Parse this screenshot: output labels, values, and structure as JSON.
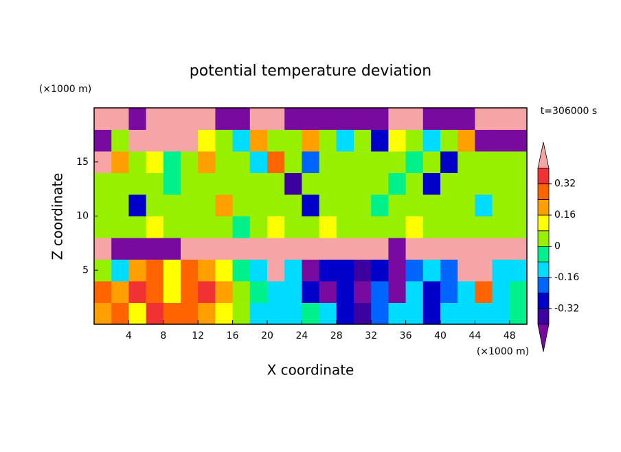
{
  "chart_data": {
    "type": "heatmap",
    "title": "potential temperature deviation",
    "y_unit_label": "(×1000 m)",
    "x_unit_label": "(×1000 m)",
    "time_label": "t=306000 s",
    "xlabel": "X coordinate",
    "ylabel": "Z coordinate",
    "xlim": [
      0,
      50
    ],
    "ylim": [
      0,
      20
    ],
    "xticks": [
      4,
      8,
      12,
      16,
      20,
      24,
      28,
      32,
      36,
      40,
      44,
      48
    ],
    "yticks": [
      5,
      10,
      15
    ],
    "x": [
      1,
      3,
      5,
      7,
      9,
      11,
      13,
      15,
      17,
      19,
      21,
      23,
      25,
      27,
      29,
      31,
      33,
      35,
      37,
      39,
      41,
      43,
      45,
      47,
      49
    ],
    "y": [
      1,
      3,
      5,
      7,
      9,
      11,
      13,
      15,
      17,
      19
    ],
    "z": [
      [
        0.2,
        0.3,
        0.1,
        0.35,
        0.25,
        0.3,
        0.2,
        0.1,
        0.05,
        -0.1,
        -0.12,
        -0.1,
        -0.05,
        -0.15,
        -0.3,
        -0.38,
        -0.2,
        -0.12,
        -0.1,
        -0.3,
        -0.15,
        -0.1,
        -0.12,
        -0.1,
        -0.05
      ],
      [
        0.3,
        0.2,
        0.35,
        0.25,
        0.1,
        0.3,
        0.35,
        0.2,
        0.05,
        -0.05,
        -0.12,
        -0.15,
        -0.3,
        -0.42,
        -0.3,
        -0.42,
        -0.2,
        -0.45,
        -0.15,
        -0.3,
        -0.2,
        -0.1,
        0.3,
        -0.12,
        -0.08
      ],
      [
        0.05,
        -0.1,
        0.2,
        0.3,
        0.1,
        0.25,
        0.2,
        0.1,
        -0.05,
        -0.1,
        0.45,
        -0.15,
        -0.45,
        -0.25,
        -0.3,
        -0.35,
        -0.3,
        -0.45,
        -0.2,
        -0.15,
        -0.2,
        0.45,
        0.45,
        -0.1,
        -0.15
      ],
      [
        0.45,
        -0.45,
        -0.45,
        -0.45,
        -0.45,
        0.45,
        0.45,
        0.45,
        0.45,
        0.45,
        0.45,
        0.45,
        0.45,
        0.45,
        0.45,
        0.45,
        0.45,
        -0.45,
        0.45,
        0.45,
        0.45,
        0.45,
        0.45,
        0.45,
        0.45
      ],
      [
        0.05,
        0.0,
        0.05,
        0.1,
        0.05,
        0.05,
        0.0,
        0.05,
        -0.05,
        0.05,
        0.1,
        0.05,
        0.05,
        0.08,
        0.05,
        0.0,
        0.05,
        0.05,
        0.1,
        0.05,
        0.05,
        0.0,
        0.05,
        0.05,
        0.05
      ],
      [
        0.04,
        0.04,
        -0.3,
        0.04,
        0.04,
        0.04,
        0.04,
        0.2,
        0.04,
        0.04,
        0.04,
        0.04,
        -0.3,
        0.04,
        0.04,
        0.04,
        -0.04,
        0.04,
        0.04,
        0.04,
        0.04,
        0.04,
        -0.12,
        0.04,
        0.04
      ],
      [
        0.04,
        0.04,
        0.04,
        0.04,
        -0.04,
        0.04,
        0.04,
        0.04,
        0.04,
        0.04,
        0.04,
        -0.35,
        0.04,
        0.04,
        0.04,
        0.04,
        0.04,
        -0.04,
        0.04,
        -0.3,
        0.04,
        0.04,
        0.04,
        0.04,
        0.04
      ],
      [
        0.45,
        0.2,
        0.04,
        0.1,
        -0.04,
        0.04,
        0.2,
        0.04,
        0.04,
        -0.12,
        0.25,
        0.04,
        -0.2,
        0.04,
        0.04,
        0.04,
        0.04,
        0.04,
        -0.04,
        0.04,
        -0.3,
        0.04,
        0.04,
        0.04,
        0.04
      ],
      [
        -0.45,
        0.04,
        0.45,
        0.45,
        0.45,
        0.45,
        0.1,
        0.04,
        -0.12,
        0.2,
        0.04,
        0.04,
        0.2,
        0.04,
        -0.1,
        0.04,
        -0.3,
        0.1,
        0.04,
        -0.1,
        0.04,
        0.2,
        -0.45,
        -0.45,
        -0.45
      ],
      [
        0.45,
        0.45,
        -0.45,
        0.45,
        0.45,
        0.45,
        0.45,
        -0.45,
        -0.45,
        0.45,
        0.45,
        -0.45,
        -0.45,
        -0.45,
        -0.45,
        -0.45,
        -0.45,
        0.45,
        0.45,
        -0.45,
        -0.45,
        -0.45,
        0.45,
        0.45,
        0.45
      ]
    ],
    "levels": [
      -0.4,
      -0.32,
      -0.24,
      -0.16,
      -0.08,
      0,
      0.08,
      0.16,
      0.24,
      0.32,
      0.4
    ],
    "colors": [
      "#3c00a0",
      "#0000c8",
      "#0064ff",
      "#00dcff",
      "#00f08c",
      "#96f000",
      "#ffff00",
      "#ffa000",
      "#ff6400",
      "#f03232"
    ],
    "over_color": "#f5a5a5",
    "under_color": "#780aa0",
    "colorbar_ticks": [
      -0.32,
      -0.16,
      0,
      0.16,
      0.32
    ]
  }
}
